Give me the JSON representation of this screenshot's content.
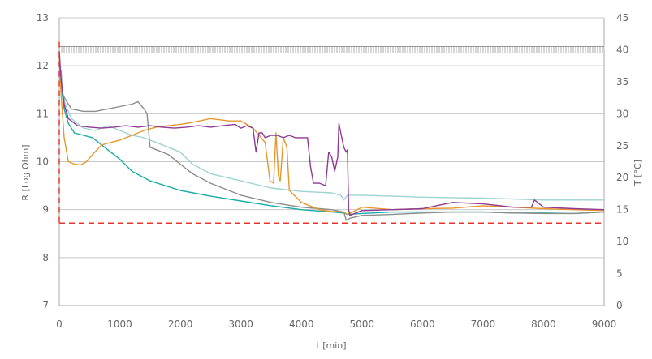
{
  "chart_data": {
    "type": "line",
    "title": "",
    "xlabel": "t [min]",
    "ylabel": "R [Log Ohm]",
    "y2label": "T [°C]",
    "xlim": [
      0,
      9000
    ],
    "ylim": [
      7,
      13
    ],
    "y2lim": [
      0,
      45
    ],
    "x_ticks": [
      0,
      1000,
      2000,
      3000,
      4000,
      5000,
      6000,
      7000,
      8000,
      9000
    ],
    "y_ticks": [
      7,
      8,
      9,
      10,
      11,
      12,
      13
    ],
    "y2_ticks": [
      0,
      5,
      10,
      15,
      20,
      25,
      30,
      35,
      40,
      45
    ],
    "grid": "horizontal",
    "legend": "none",
    "reference_line": {
      "y": 8.72,
      "color": "#e8342a",
      "style": "dashed"
    },
    "temperature_line": {
      "y2": 40,
      "color": "#999999"
    },
    "series": [
      {
        "color": "#1aaba6",
        "points": [
          [
            0,
            12.3
          ],
          [
            30,
            11.6
          ],
          [
            80,
            11.1
          ],
          [
            150,
            10.8
          ],
          [
            250,
            10.6
          ],
          [
            400,
            10.55
          ],
          [
            550,
            10.5
          ],
          [
            700,
            10.35
          ],
          [
            800,
            10.25
          ],
          [
            900,
            10.15
          ],
          [
            1000,
            10.05
          ],
          [
            1200,
            9.8
          ],
          [
            1500,
            9.6
          ],
          [
            2000,
            9.4
          ],
          [
            2500,
            9.28
          ],
          [
            3000,
            9.18
          ],
          [
            3500,
            9.08
          ],
          [
            4000,
            9.0
          ],
          [
            4500,
            8.95
          ],
          [
            4700,
            8.93
          ],
          [
            4760,
            8.9
          ],
          [
            5000,
            8.92
          ],
          [
            5500,
            8.95
          ],
          [
            6000,
            8.95
          ],
          [
            6500,
            8.95
          ],
          [
            7000,
            8.95
          ],
          [
            7500,
            8.93
          ],
          [
            8000,
            8.93
          ],
          [
            8500,
            8.92
          ],
          [
            9000,
            8.95
          ]
        ]
      },
      {
        "color": "#8c8c8c",
        "points": [
          [
            0,
            12.0
          ],
          [
            30,
            11.9
          ],
          [
            60,
            11.4
          ],
          [
            100,
            11.3
          ],
          [
            200,
            11.1
          ],
          [
            400,
            11.05
          ],
          [
            600,
            11.05
          ],
          [
            800,
            11.1
          ],
          [
            1000,
            11.15
          ],
          [
            1200,
            11.2
          ],
          [
            1300,
            11.25
          ],
          [
            1400,
            11.1
          ],
          [
            1450,
            11.0
          ],
          [
            1500,
            10.3
          ],
          [
            1600,
            10.25
          ],
          [
            1800,
            10.15
          ],
          [
            2000,
            9.95
          ],
          [
            2200,
            9.75
          ],
          [
            2500,
            9.55
          ],
          [
            2700,
            9.45
          ],
          [
            3000,
            9.3
          ],
          [
            3500,
            9.15
          ],
          [
            4000,
            9.05
          ],
          [
            4500,
            9.0
          ],
          [
            4700,
            8.95
          ],
          [
            4740,
            8.78
          ],
          [
            4800,
            8.82
          ],
          [
            5000,
            8.88
          ],
          [
            5500,
            8.9
          ],
          [
            6000,
            8.93
          ],
          [
            6500,
            8.95
          ],
          [
            7000,
            8.95
          ],
          [
            7500,
            8.93
          ],
          [
            8000,
            8.92
          ],
          [
            8500,
            8.92
          ],
          [
            9000,
            8.95
          ]
        ]
      },
      {
        "color": "#9dd3d1",
        "points": [
          [
            0,
            12.1
          ],
          [
            30,
            11.8
          ],
          [
            60,
            11.4
          ],
          [
            100,
            11.2
          ],
          [
            200,
            10.9
          ],
          [
            300,
            10.8
          ],
          [
            400,
            10.7
          ],
          [
            600,
            10.65
          ],
          [
            800,
            10.75
          ],
          [
            1000,
            10.65
          ],
          [
            1200,
            10.55
          ],
          [
            1400,
            10.5
          ],
          [
            1600,
            10.4
          ],
          [
            1800,
            10.3
          ],
          [
            2000,
            10.2
          ],
          [
            2200,
            9.95
          ],
          [
            2500,
            9.75
          ],
          [
            3000,
            9.6
          ],
          [
            3500,
            9.45
          ],
          [
            4000,
            9.38
          ],
          [
            4500,
            9.35
          ],
          [
            4650,
            9.3
          ],
          [
            4700,
            9.2
          ],
          [
            4760,
            9.3
          ],
          [
            5000,
            9.3
          ],
          [
            5500,
            9.28
          ],
          [
            6000,
            9.26
          ],
          [
            6500,
            9.25
          ],
          [
            7000,
            9.24
          ],
          [
            7500,
            9.22
          ],
          [
            8000,
            9.2
          ],
          [
            8500,
            9.2
          ],
          [
            9000,
            9.2
          ]
        ]
      },
      {
        "color": "#e8962e",
        "points": [
          [
            0,
            12.2
          ],
          [
            30,
            11.4
          ],
          [
            80,
            10.5
          ],
          [
            150,
            10.0
          ],
          [
            250,
            9.95
          ],
          [
            350,
            9.93
          ],
          [
            450,
            10.0
          ],
          [
            550,
            10.15
          ],
          [
            700,
            10.35
          ],
          [
            850,
            10.4
          ],
          [
            1000,
            10.45
          ],
          [
            1200,
            10.55
          ],
          [
            1400,
            10.65
          ],
          [
            1600,
            10.72
          ],
          [
            1800,
            10.75
          ],
          [
            2000,
            10.78
          ],
          [
            2200,
            10.82
          ],
          [
            2500,
            10.9
          ],
          [
            2800,
            10.85
          ],
          [
            3000,
            10.85
          ],
          [
            3200,
            10.7
          ],
          [
            3400,
            10.4
          ],
          [
            3480,
            9.6
          ],
          [
            3540,
            9.55
          ],
          [
            3580,
            10.6
          ],
          [
            3620,
            9.7
          ],
          [
            3650,
            9.6
          ],
          [
            3700,
            10.5
          ],
          [
            3760,
            10.3
          ],
          [
            3800,
            9.4
          ],
          [
            4000,
            9.15
          ],
          [
            4300,
            9.0
          ],
          [
            4500,
            8.96
          ],
          [
            4700,
            8.95
          ],
          [
            4760,
            8.9
          ],
          [
            5000,
            9.05
          ],
          [
            5500,
            9.0
          ],
          [
            6000,
            9.02
          ],
          [
            6500,
            9.03
          ],
          [
            7000,
            9.08
          ],
          [
            7500,
            9.05
          ],
          [
            8000,
            9.02
          ],
          [
            8500,
            9.0
          ],
          [
            9000,
            8.98
          ]
        ]
      },
      {
        "color": "#8e3b93",
        "points": [
          [
            0,
            12.3
          ],
          [
            30,
            11.7
          ],
          [
            80,
            11.2
          ],
          [
            150,
            10.9
          ],
          [
            300,
            10.75
          ],
          [
            500,
            10.72
          ],
          [
            700,
            10.7
          ],
          [
            900,
            10.72
          ],
          [
            1100,
            10.75
          ],
          [
            1300,
            10.72
          ],
          [
            1500,
            10.75
          ],
          [
            1700,
            10.72
          ],
          [
            1900,
            10.7
          ],
          [
            2100,
            10.72
          ],
          [
            2300,
            10.75
          ],
          [
            2500,
            10.72
          ],
          [
            2700,
            10.75
          ],
          [
            2900,
            10.78
          ],
          [
            3000,
            10.7
          ],
          [
            3100,
            10.75
          ],
          [
            3200,
            10.7
          ],
          [
            3250,
            10.2
          ],
          [
            3300,
            10.6
          ],
          [
            3350,
            10.6
          ],
          [
            3400,
            10.5
          ],
          [
            3500,
            10.55
          ],
          [
            3600,
            10.55
          ],
          [
            3700,
            10.5
          ],
          [
            3800,
            10.55
          ],
          [
            3900,
            10.5
          ],
          [
            4000,
            10.5
          ],
          [
            4100,
            10.5
          ],
          [
            4150,
            9.9
          ],
          [
            4200,
            9.55
          ],
          [
            4300,
            9.55
          ],
          [
            4400,
            9.5
          ],
          [
            4450,
            10.2
          ],
          [
            4500,
            10.1
          ],
          [
            4550,
            9.8
          ],
          [
            4600,
            10.1
          ],
          [
            4620,
            10.8
          ],
          [
            4650,
            10.6
          ],
          [
            4700,
            10.3
          ],
          [
            4740,
            10.2
          ],
          [
            4760,
            10.25
          ],
          [
            4780,
            9.0
          ],
          [
            4800,
            8.88
          ],
          [
            5000,
            8.98
          ],
          [
            5500,
            9.0
          ],
          [
            6000,
            9.02
          ],
          [
            6300,
            9.1
          ],
          [
            6500,
            9.15
          ],
          [
            7000,
            9.12
          ],
          [
            7500,
            9.05
          ],
          [
            7800,
            9.05
          ],
          [
            7850,
            9.2
          ],
          [
            8000,
            9.05
          ],
          [
            8500,
            9.02
          ],
          [
            9000,
            9.0
          ]
        ]
      }
    ]
  }
}
